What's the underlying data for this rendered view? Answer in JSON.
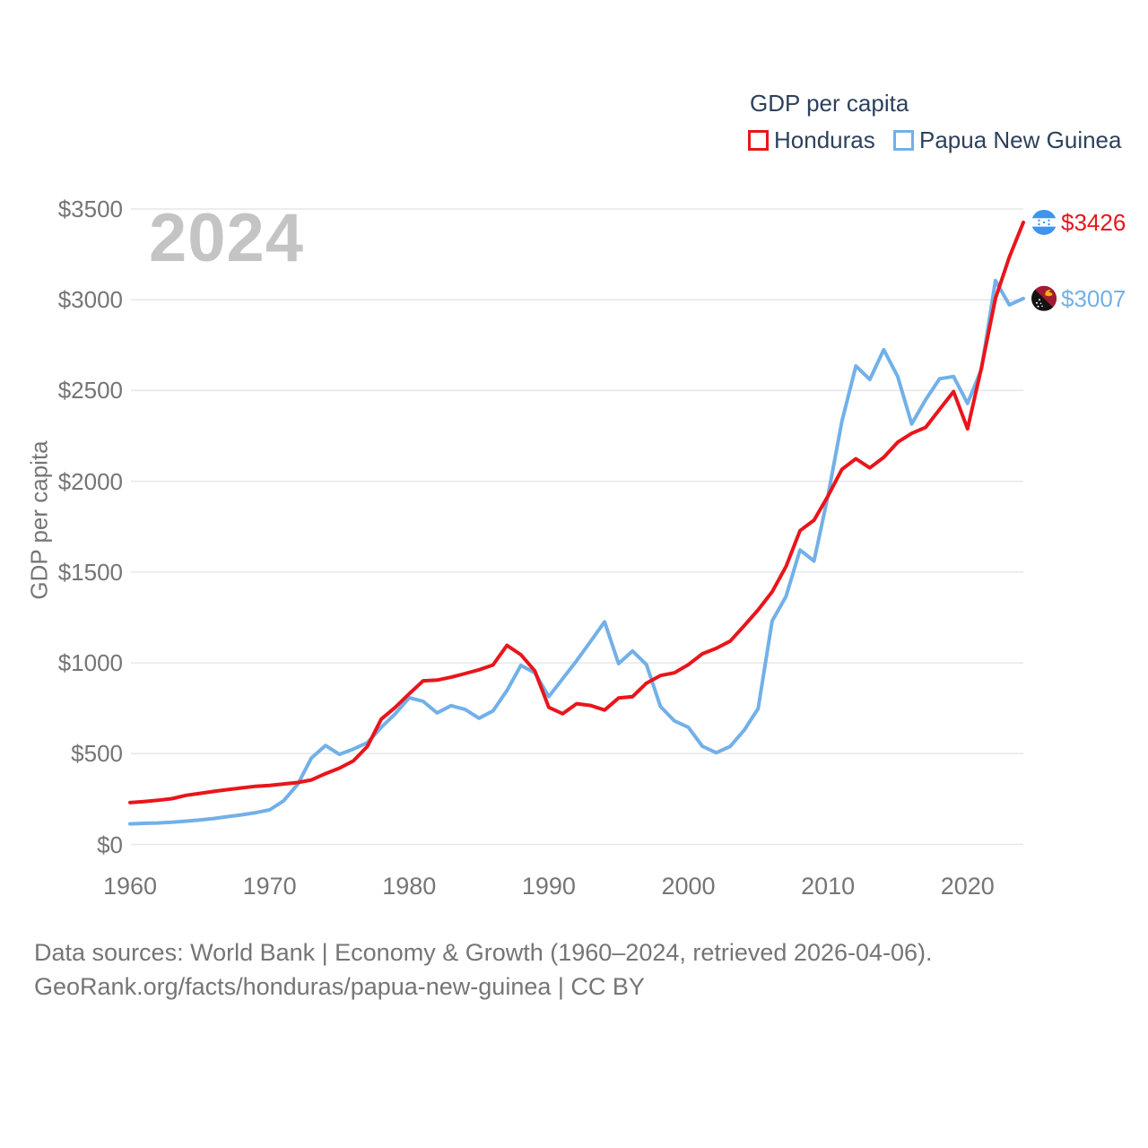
{
  "legend": {
    "title": "GDP per capita",
    "items": [
      {
        "label": "Honduras",
        "color": "#e9151b"
      },
      {
        "label": "Papua New Guinea",
        "color": "#72b0e8"
      }
    ]
  },
  "watermark": "2024",
  "footer": {
    "line1": "Data sources: World Bank | Economy & Growth (1960–2024, retrieved 2026-04-06).",
    "line2": "GeoRank.org/facts/honduras/papua-new-guinea | CC BY"
  },
  "chart_data": {
    "type": "line",
    "title": "GDP per capita",
    "watermark": "2024",
    "xlabel": "",
    "ylabel": "GDP per capita",
    "grid": true,
    "legend_position": "top-right",
    "xlim": [
      1960,
      2024
    ],
    "ylim": [
      0,
      3500
    ],
    "x_ticks": [
      1960,
      1970,
      1980,
      1990,
      2000,
      2010,
      2020
    ],
    "y_ticks": [
      {
        "value": 0,
        "label": "$0"
      },
      {
        "value": 500,
        "label": "$500"
      },
      {
        "value": 1000,
        "label": "$1000"
      },
      {
        "value": 1500,
        "label": "$1500"
      },
      {
        "value": 2000,
        "label": "$2000"
      },
      {
        "value": 2500,
        "label": "$2500"
      },
      {
        "value": 3000,
        "label": "$3000"
      },
      {
        "value": 3500,
        "label": "$3500"
      }
    ],
    "years": [
      1960,
      1961,
      1962,
      1963,
      1964,
      1965,
      1966,
      1967,
      1968,
      1969,
      1970,
      1971,
      1972,
      1973,
      1974,
      1975,
      1976,
      1977,
      1978,
      1979,
      1980,
      1981,
      1982,
      1983,
      1984,
      1985,
      1986,
      1987,
      1988,
      1989,
      1990,
      1991,
      1992,
      1993,
      1994,
      1995,
      1996,
      1997,
      1998,
      1999,
      2000,
      2001,
      2002,
      2003,
      2004,
      2005,
      2006,
      2007,
      2008,
      2009,
      2010,
      2011,
      2012,
      2013,
      2014,
      2015,
      2016,
      2017,
      2018,
      2019,
      2020,
      2021,
      2022,
      2023,
      2024
    ],
    "series": [
      {
        "name": "Honduras",
        "color": "#e9151b",
        "values": [
          230,
          236,
          243,
          252,
          270,
          281,
          292,
          302,
          311,
          320,
          325,
          333,
          341,
          355,
          390,
          420,
          460,
          540,
          690,
          755,
          830,
          901,
          905,
          921,
          941,
          962,
          988,
          1096,
          1045,
          956,
          755,
          720,
          775,
          765,
          740,
          806,
          814,
          888,
          930,
          945,
          990,
          1050,
          1080,
          1120,
          1205,
          1292,
          1391,
          1531,
          1728,
          1786,
          1918,
          2066,
          2124,
          2074,
          2132,
          2215,
          2264,
          2297,
          2396,
          2494,
          2289,
          2626,
          3007,
          3235,
          3426
        ]
      },
      {
        "name": "Papua New Guinea",
        "color": "#72b0e8",
        "values": [
          113,
          116,
          118,
          122,
          128,
          135,
          143,
          153,
          163,
          175,
          190,
          240,
          330,
          476,
          545,
          496,
          525,
          560,
          645,
          720,
          808,
          788,
          724,
          764,
          744,
          695,
          735,
          847,
          986,
          945,
          814,
          913,
          1012,
          1119,
          1226,
          996,
          1065,
          990,
          760,
          680,
          645,
          541,
          505,
          540,
          630,
          748,
          1230,
          1366,
          1622,
          1561,
          1918,
          2330,
          2635,
          2561,
          2725,
          2577,
          2316,
          2450,
          2565,
          2577,
          2429,
          2617,
          3106,
          2972,
          3007
        ]
      }
    ],
    "end_labels": [
      {
        "series": "Honduras",
        "text": "$3426",
        "color": "#e9151b"
      },
      {
        "series": "Papua New Guinea",
        "text": "$3007",
        "color": "#72b0e8"
      }
    ]
  }
}
